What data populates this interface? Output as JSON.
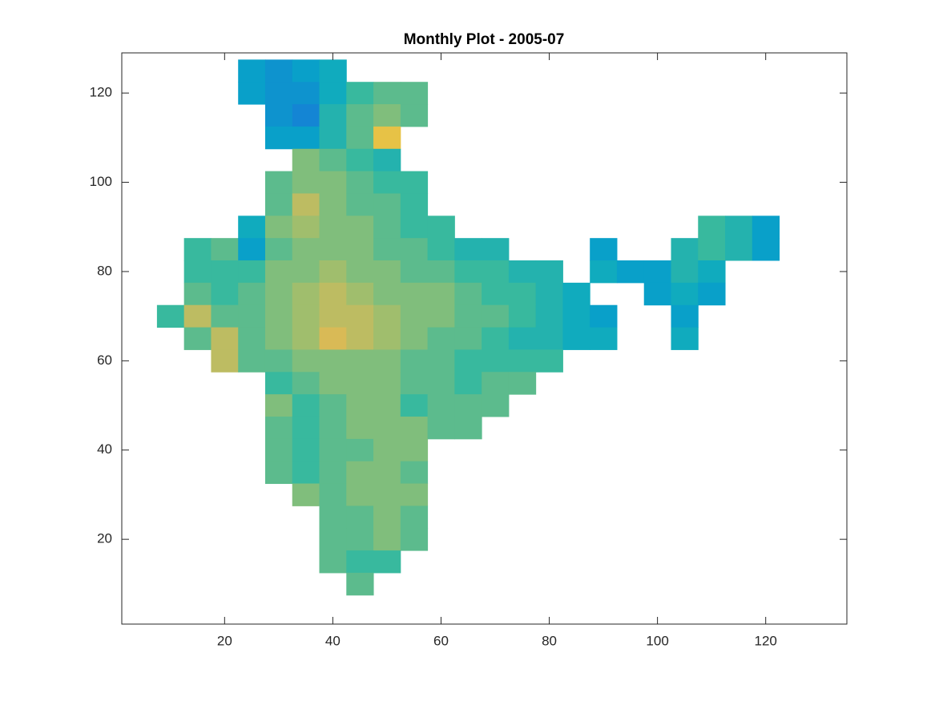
{
  "chart_data": {
    "type": "heatmap",
    "title": "Monthly Plot - 2005-07",
    "colormap": "parula",
    "clim": [
      0,
      1
    ],
    "box": true,
    "xlim": [
      1,
      135
    ],
    "ylim": [
      1,
      129
    ],
    "xticks": [
      20,
      40,
      60,
      80,
      100,
      120
    ],
    "yticks": [
      20,
      40,
      60,
      80,
      100,
      120
    ],
    "x": [
      5,
      10,
      15,
      20,
      25,
      30,
      35,
      40,
      45,
      50,
      55,
      60,
      65,
      70,
      75,
      80,
      85,
      90,
      95,
      100,
      105,
      110,
      115,
      120,
      125,
      130
    ],
    "y": [
      125,
      120,
      115,
      110,
      105,
      100,
      95,
      90,
      85,
      80,
      75,
      70,
      65,
      60,
      55,
      50,
      45,
      40,
      35,
      30,
      25,
      20,
      15,
      10
    ],
    "z": [
      [
        null,
        null,
        null,
        null,
        0.35,
        0.3,
        0.35,
        0.4,
        null,
        null,
        null,
        null,
        null,
        null,
        null,
        null,
        null,
        null,
        null,
        null,
        null,
        null,
        null,
        null,
        null,
        null
      ],
      [
        null,
        null,
        null,
        null,
        0.35,
        0.3,
        0.3,
        0.4,
        0.5,
        0.55,
        0.55,
        null,
        null,
        null,
        null,
        null,
        null,
        null,
        null,
        null,
        null,
        null,
        null,
        null,
        null,
        null
      ],
      [
        null,
        null,
        null,
        null,
        null,
        0.3,
        0.25,
        0.45,
        0.55,
        0.6,
        0.55,
        null,
        null,
        null,
        null,
        null,
        null,
        null,
        null,
        null,
        null,
        null,
        null,
        null,
        null,
        null
      ],
      [
        null,
        null,
        null,
        null,
        null,
        0.35,
        0.35,
        0.45,
        0.55,
        0.8,
        null,
        null,
        null,
        null,
        null,
        null,
        null,
        null,
        null,
        null,
        null,
        null,
        null,
        null,
        null,
        null
      ],
      [
        null,
        null,
        null,
        null,
        null,
        null,
        0.6,
        0.55,
        0.5,
        0.45,
        null,
        null,
        null,
        null,
        null,
        null,
        null,
        null,
        null,
        null,
        null,
        null,
        null,
        null,
        null,
        null
      ],
      [
        null,
        null,
        null,
        null,
        null,
        0.55,
        0.6,
        0.6,
        0.55,
        0.5,
        0.5,
        null,
        null,
        null,
        null,
        null,
        null,
        null,
        null,
        null,
        null,
        null,
        null,
        null,
        null,
        null
      ],
      [
        null,
        null,
        null,
        null,
        null,
        0.55,
        0.7,
        0.6,
        0.55,
        0.55,
        0.5,
        null,
        null,
        null,
        null,
        null,
        null,
        null,
        null,
        null,
        null,
        null,
        null,
        null,
        null,
        null
      ],
      [
        null,
        null,
        null,
        null,
        0.4,
        0.6,
        0.65,
        0.6,
        0.6,
        0.55,
        0.5,
        0.5,
        null,
        null,
        null,
        null,
        null,
        null,
        null,
        null,
        null,
        0.5,
        0.45,
        0.35,
        null,
        null
      ],
      [
        null,
        null,
        0.5,
        0.55,
        0.35,
        0.55,
        0.6,
        0.6,
        0.6,
        0.55,
        0.55,
        0.5,
        0.45,
        0.45,
        null,
        null,
        null,
        0.35,
        null,
        null,
        0.45,
        0.5,
        0.45,
        0.35,
        null,
        null
      ],
      [
        null,
        null,
        0.5,
        0.5,
        0.5,
        0.6,
        0.6,
        0.65,
        0.6,
        0.6,
        0.55,
        0.55,
        0.5,
        0.5,
        0.45,
        0.45,
        null,
        0.4,
        0.35,
        0.35,
        0.45,
        0.4,
        null,
        null,
        null,
        null
      ],
      [
        null,
        null,
        0.55,
        0.5,
        0.55,
        0.6,
        0.65,
        0.7,
        0.65,
        0.6,
        0.6,
        0.6,
        0.55,
        0.5,
        0.5,
        0.45,
        0.4,
        null,
        null,
        0.35,
        0.4,
        0.35,
        null,
        null,
        null,
        null
      ],
      [
        null,
        0.5,
        0.7,
        0.55,
        0.55,
        0.6,
        0.65,
        0.7,
        0.7,
        0.65,
        0.6,
        0.6,
        0.55,
        0.55,
        0.5,
        0.45,
        0.4,
        0.35,
        null,
        null,
        0.35,
        null,
        null,
        null,
        null,
        null
      ],
      [
        null,
        null,
        0.55,
        0.7,
        0.55,
        0.6,
        0.65,
        0.75,
        0.7,
        0.65,
        0.6,
        0.55,
        0.55,
        0.5,
        0.45,
        0.45,
        0.4,
        0.4,
        null,
        null,
        0.4,
        null,
        null,
        null,
        null,
        null
      ],
      [
        null,
        null,
        null,
        0.7,
        0.55,
        0.55,
        0.6,
        0.6,
        0.6,
        0.6,
        0.55,
        0.55,
        0.5,
        0.5,
        0.5,
        0.5,
        null,
        null,
        null,
        null,
        null,
        null,
        null,
        null,
        null,
        null
      ],
      [
        null,
        null,
        null,
        null,
        null,
        0.5,
        0.55,
        0.6,
        0.6,
        0.6,
        0.55,
        0.55,
        0.5,
        0.55,
        0.55,
        null,
        null,
        null,
        null,
        null,
        null,
        null,
        null,
        null,
        null,
        null
      ],
      [
        null,
        null,
        null,
        null,
        null,
        0.6,
        0.5,
        0.55,
        0.6,
        0.6,
        0.5,
        0.55,
        0.55,
        0.55,
        null,
        null,
        null,
        null,
        null,
        null,
        null,
        null,
        null,
        null,
        null,
        null
      ],
      [
        null,
        null,
        null,
        null,
        null,
        0.55,
        0.5,
        0.55,
        0.6,
        0.6,
        0.6,
        0.55,
        0.55,
        null,
        null,
        null,
        null,
        null,
        null,
        null,
        null,
        null,
        null,
        null,
        null,
        null
      ],
      [
        null,
        null,
        null,
        null,
        null,
        0.55,
        0.5,
        0.55,
        0.55,
        0.6,
        0.6,
        null,
        null,
        null,
        null,
        null,
        null,
        null,
        null,
        null,
        null,
        null,
        null,
        null,
        null,
        null
      ],
      [
        null,
        null,
        null,
        null,
        null,
        0.55,
        0.5,
        0.55,
        0.6,
        0.6,
        0.55,
        null,
        null,
        null,
        null,
        null,
        null,
        null,
        null,
        null,
        null,
        null,
        null,
        null,
        null,
        null
      ],
      [
        null,
        null,
        null,
        null,
        null,
        null,
        0.6,
        0.55,
        0.6,
        0.6,
        0.6,
        null,
        null,
        null,
        null,
        null,
        null,
        null,
        null,
        null,
        null,
        null,
        null,
        null,
        null,
        null
      ],
      [
        null,
        null,
        null,
        null,
        null,
        null,
        null,
        0.55,
        0.55,
        0.6,
        0.55,
        null,
        null,
        null,
        null,
        null,
        null,
        null,
        null,
        null,
        null,
        null,
        null,
        null,
        null,
        null
      ],
      [
        null,
        null,
        null,
        null,
        null,
        null,
        null,
        0.55,
        0.55,
        0.6,
        0.55,
        null,
        null,
        null,
        null,
        null,
        null,
        null,
        null,
        null,
        null,
        null,
        null,
        null,
        null,
        null
      ],
      [
        null,
        null,
        null,
        null,
        null,
        null,
        null,
        0.55,
        0.5,
        0.5,
        null,
        null,
        null,
        null,
        null,
        null,
        null,
        null,
        null,
        null,
        null,
        null,
        null,
        null,
        null,
        null
      ],
      [
        null,
        null,
        null,
        null,
        null,
        null,
        null,
        null,
        0.55,
        null,
        null,
        null,
        null,
        null,
        null,
        null,
        null,
        null,
        null,
        null,
        null,
        null,
        null,
        null,
        null,
        null
      ]
    ]
  }
}
